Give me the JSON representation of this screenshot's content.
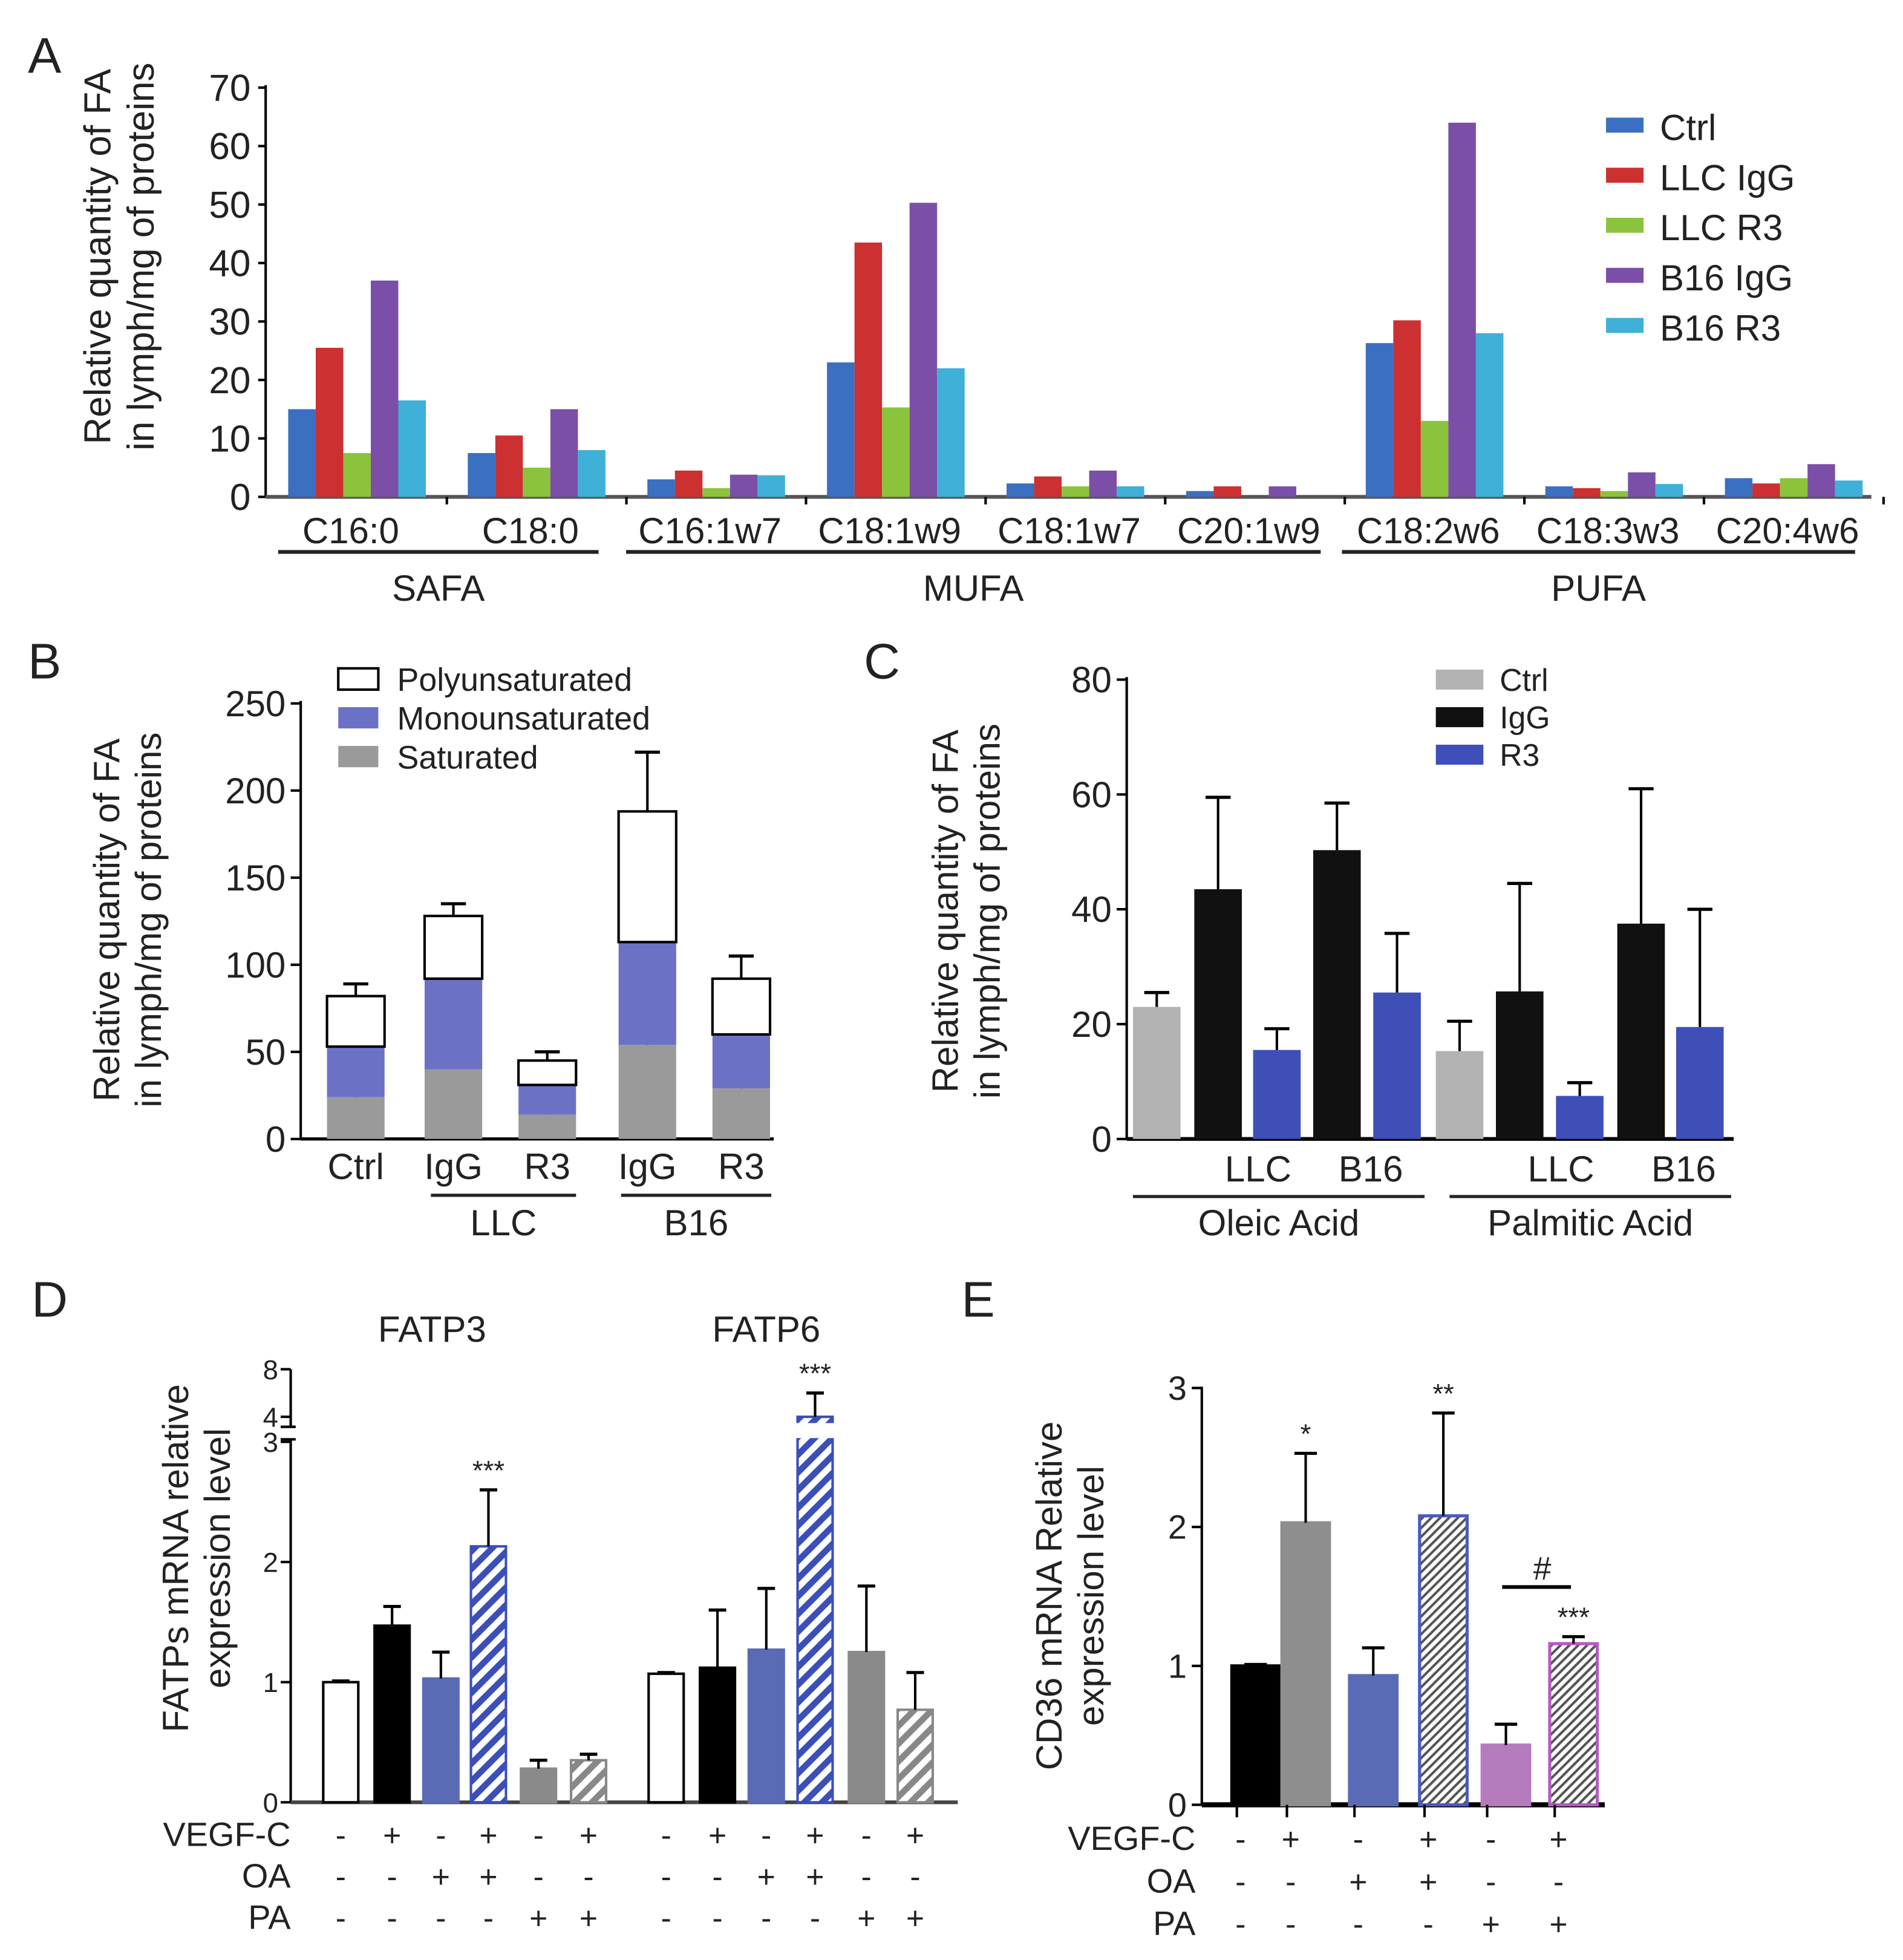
{
  "panels": {
    "A": "A",
    "B": "B",
    "C": "C",
    "D": "D",
    "E": "E"
  },
  "chart_data": [
    {
      "id": "A",
      "type": "bar",
      "ylabel": [
        "Relative quantity of FA",
        "in lymph/mg of proteins"
      ],
      "ylim": [
        0,
        70
      ],
      "yticks": [
        0,
        10,
        20,
        30,
        40,
        50,
        60,
        70
      ],
      "categories": [
        "C16:0",
        "C18:0",
        "C16:1w7",
        "C18:1w9",
        "C18:1w7",
        "C20:1w9",
        "C18:2w6",
        "C18:3w3",
        "C20:4w6"
      ],
      "groups": [
        {
          "label": "SAFA",
          "span": [
            0,
            1
          ]
        },
        {
          "label": "MUFA",
          "span": [
            2,
            5
          ]
        },
        {
          "label": "PUFA",
          "span": [
            6,
            8
          ]
        }
      ],
      "legend_position": "top-right",
      "series": [
        {
          "name": "Ctrl",
          "color": "#3b6fc1",
          "values": [
            15,
            7.5,
            3,
            23,
            2.3,
            1,
            26.3,
            1.8,
            3.2
          ]
        },
        {
          "name": "LLC IgG",
          "color": "#cc3030",
          "values": [
            25.5,
            10.5,
            4.5,
            43.5,
            3.5,
            1.8,
            30.2,
            1.5,
            2.3
          ]
        },
        {
          "name": "LLC R3",
          "color": "#8cc33c",
          "values": [
            7.5,
            5,
            1.5,
            15.3,
            1.8,
            0,
            13,
            1,
            3.2
          ]
        },
        {
          "name": "B16 IgG",
          "color": "#7b4fa8",
          "values": [
            37,
            15,
            3.8,
            50.3,
            4.5,
            1.8,
            64,
            4.2,
            5.6
          ]
        },
        {
          "name": "B16 R3",
          "color": "#3fb0d8",
          "values": [
            16.5,
            8,
            3.7,
            22,
            1.8,
            0,
            28,
            2.2,
            2.8
          ]
        }
      ]
    },
    {
      "id": "B",
      "type": "bar",
      "stacked": true,
      "ylabel": [
        "Relative quantity of FA",
        "in lymph/mg of proteins"
      ],
      "ylim": [
        0,
        250
      ],
      "yticks": [
        0,
        50,
        100,
        150,
        200,
        250
      ],
      "categories": [
        "Ctrl",
        "IgG",
        "R3",
        "IgG",
        "R3"
      ],
      "groups": [
        {
          "label": "LLC",
          "span": [
            1,
            2
          ]
        },
        {
          "label": "B16",
          "span": [
            3,
            4
          ]
        }
      ],
      "legend_position": "top",
      "series": [
        {
          "name": "Saturated",
          "color": "#9a9a9a",
          "values": [
            24,
            40,
            14,
            54,
            29
          ],
          "error_top": [
            28,
            52,
            17,
            67,
            39
          ]
        },
        {
          "name": "Monounsaturated",
          "color": "#6b72c6",
          "values": [
            29,
            52,
            17,
            59,
            31
          ],
          "error_top": [
            55,
            111,
            35,
            121,
            71
          ]
        },
        {
          "name": "Polyunsaturated",
          "color": "#ffffff",
          "values": [
            29,
            36,
            14,
            75,
            32
          ],
          "error_top": [
            89,
            135,
            50,
            222,
            105
          ]
        }
      ]
    },
    {
      "id": "C",
      "type": "bar",
      "ylabel": [
        "Relative quantity of FA",
        "in lymph/mg of proteins"
      ],
      "ylim": [
        0,
        80
      ],
      "yticks": [
        0,
        20,
        40,
        60,
        80
      ],
      "sublabels": [
        "LLC",
        "B16",
        "LLC",
        "B16"
      ],
      "groups": [
        {
          "label": "Oleic Acid"
        },
        {
          "label": "Palmitic Acid"
        }
      ],
      "legend": [
        {
          "name": "Ctrl",
          "color": "#b3b3b3"
        },
        {
          "name": "IgG",
          "color": "#111111"
        },
        {
          "name": "R3",
          "color": "#3f4fb8"
        }
      ],
      "legend_position": "top",
      "bars": [
        {
          "group": "Oleic Acid",
          "series": "Ctrl",
          "value": 23,
          "error_top": 25.5
        },
        {
          "group": "Oleic Acid",
          "series": "IgG",
          "value": 43.5,
          "error_top": 59.5
        },
        {
          "group": "Oleic Acid",
          "series": "R3",
          "value": 15.5,
          "error_top": 19.2
        },
        {
          "group": "Oleic Acid",
          "series": "IgG",
          "value": 50.3,
          "error_top": 58.5
        },
        {
          "group": "Oleic Acid",
          "series": "R3",
          "value": 25.5,
          "error_top": 35.8
        },
        {
          "group": "Palmitic Acid",
          "series": "Ctrl",
          "value": 15.3,
          "error_top": 20.5
        },
        {
          "group": "Palmitic Acid",
          "series": "IgG",
          "value": 25.7,
          "error_top": 44.5
        },
        {
          "group": "Palmitic Acid",
          "series": "R3",
          "value": 7.5,
          "error_top": 9.8
        },
        {
          "group": "Palmitic Acid",
          "series": "IgG",
          "value": 37.5,
          "error_top": 61
        },
        {
          "group": "Palmitic Acid",
          "series": "R3",
          "value": 19.5,
          "error_top": 40
        }
      ]
    },
    {
      "id": "D",
      "type": "bar",
      "ylabel": [
        "FATPs mRNA relative",
        "expression level"
      ],
      "ylim": [
        0,
        8
      ],
      "axis_break": [
        3,
        4
      ],
      "yticks": [
        0,
        1,
        2,
        3,
        4,
        8
      ],
      "subtitles": [
        "FATP3",
        "FATP6"
      ],
      "conditions": {
        "rows": [
          "VEGF-C",
          "OA",
          "PA"
        ],
        "VEGF-C": [
          "-",
          "+",
          "-",
          "+",
          "-",
          "+"
        ],
        "OA": [
          "-",
          "-",
          "+",
          "+",
          "-",
          "-"
        ],
        "PA": [
          "-",
          "-",
          "-",
          "-",
          "+",
          "+"
        ]
      },
      "series": [
        {
          "name": "FATP3",
          "values": [
            1.0,
            1.47,
            1.03,
            2.13,
            0.28,
            0.35
          ],
          "error_top": [
            1.01,
            1.63,
            1.25,
            2.6,
            0.35,
            0.4
          ],
          "sig": [
            "",
            "",
            "",
            "***",
            "",
            ""
          ]
        },
        {
          "name": "FATP6",
          "values": [
            1.07,
            1.12,
            1.27,
            4.0,
            1.25,
            0.77
          ],
          "error_top": [
            1.08,
            1.6,
            1.78,
            6.0,
            1.8,
            1.08
          ],
          "sig": [
            "",
            "",
            "",
            "***",
            "",
            ""
          ]
        }
      ],
      "bar_styles": [
        {
          "fill": "#ffffff",
          "stroke": "#000"
        },
        {
          "fill": "#000000",
          "stroke": "#000"
        },
        {
          "fill": "#5a6bb5",
          "stroke": "#5a6bb5"
        },
        {
          "fill": "hatch-blue",
          "stroke": "#3b4fb8"
        },
        {
          "fill": "#8a8a8a",
          "stroke": "#8a8a8a"
        },
        {
          "fill": "hatch-gray",
          "stroke": "#888"
        }
      ]
    },
    {
      "id": "E",
      "type": "bar",
      "ylabel": [
        "CD36 mRNA Relative",
        "expression level"
      ],
      "ylim": [
        0,
        3
      ],
      "yticks": [
        0,
        1,
        2,
        3
      ],
      "conditions": {
        "rows": [
          "VEGF-C",
          "OA",
          "PA"
        ],
        "VEGF-C": [
          "-",
          "+",
          "-",
          "+",
          "-",
          "+"
        ],
        "OA": [
          "-",
          "-",
          "+",
          "+",
          "-",
          "-"
        ],
        "PA": [
          "-",
          "-",
          "-",
          "-",
          "+",
          "+"
        ]
      },
      "values": [
        1.0,
        2.03,
        0.93,
        2.08,
        0.43,
        1.16
      ],
      "error_top": [
        1.01,
        2.53,
        1.13,
        2.82,
        0.58,
        1.21
      ],
      "sig": [
        "",
        "*",
        "",
        "**",
        "",
        "***"
      ],
      "bracket": {
        "label": "#",
        "between": [
          4,
          5
        ]
      },
      "bar_styles": [
        {
          "fill": "#000000",
          "stroke": "#000"
        },
        {
          "fill": "#8e8e8e",
          "stroke": "#8e8e8e"
        },
        {
          "fill": "#5a6bb5",
          "stroke": "#5a6bb5"
        },
        {
          "fill": "hatch-dark",
          "stroke": "#4a5bc0"
        },
        {
          "fill": "#b57bbd",
          "stroke": "#b57bbd"
        },
        {
          "fill": "hatch-dark",
          "stroke": "#b55bc0"
        }
      ]
    }
  ]
}
